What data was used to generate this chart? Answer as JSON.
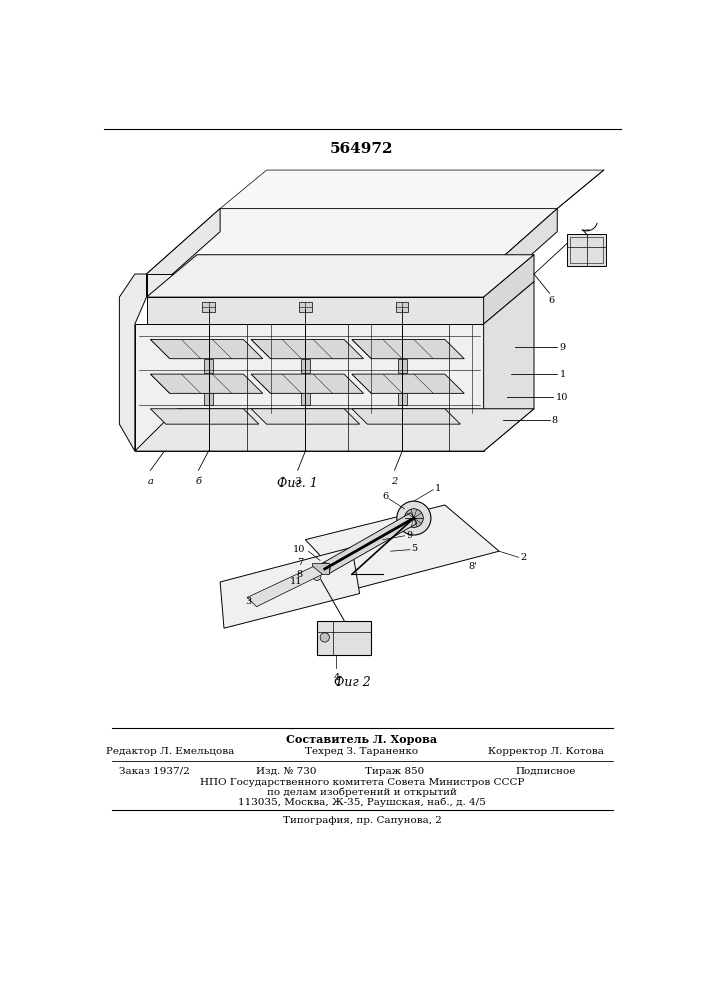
{
  "patent_number": "564972",
  "fig1_label": "Фиг. 1",
  "fig2_label": "Фиг 2",
  "footer_sestavitel": "Составитель Л. Хорова",
  "footer_redaktor": "Редактор Л. Емельцова",
  "footer_tekhred": "Техред З. Тараненко",
  "footer_korrektor": "Корректор Л. Котова",
  "footer_zakaz": "Заказ 1937/2",
  "footer_izd": "Изд. № 730",
  "footer_tirazh": "Тираж 850",
  "footer_podpisnoe": "Подписное",
  "footer_npo": "НПО Государственного комитета Совета Министров СССР",
  "footer_po_delam": "по делам изобретений и открытий",
  "footer_address": "113035, Москва, Ж-35, Раушская, наб., д. 4/5",
  "footer_tipografia": "Типография, пр. Сапунова, 2",
  "bg_color": "#ffffff",
  "lc": "#000000"
}
